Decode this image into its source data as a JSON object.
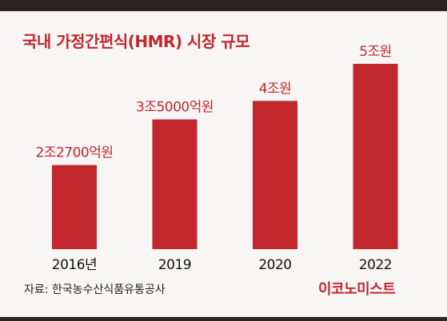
{
  "header": {
    "title": "국내 가정간편식(HMR) 시장 규모"
  },
  "footer": {
    "source": "자료: 한국농수산식품유통공사",
    "brand": "이코노미스트"
  },
  "colors": {
    "bar": "#c1272d",
    "label": "#c1272d",
    "tick": "#111111",
    "background": "#f7f6f5"
  },
  "chart_data": {
    "type": "bar",
    "title": "국내 가정간편식(HMR) 시장 규모",
    "xlabel": "",
    "ylabel": "",
    "grid": false,
    "categories": [
      "2016년",
      "2019",
      "2020",
      "2022"
    ],
    "values": [
      2.27,
      3.5,
      4.0,
      5.0
    ],
    "data_labels": [
      "2조2700억원",
      "3조5000억원",
      "4조원",
      "5조원"
    ],
    "unit": "조원",
    "ylim": [
      0,
      5.3
    ]
  }
}
